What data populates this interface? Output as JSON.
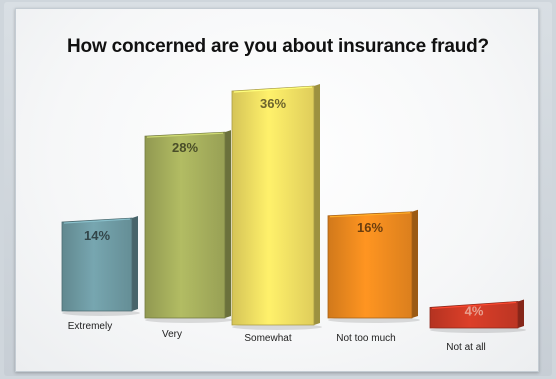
{
  "chart_data": {
    "type": "bar",
    "title": "How concerned are you about insurance fraud?",
    "categories": [
      "Extremely",
      "Very",
      "Somewhat",
      "Not too much",
      "Not at all"
    ],
    "values": [
      14,
      28,
      36,
      16,
      4
    ],
    "value_labels": [
      "14%",
      "28%",
      "36%",
      "16%",
      "4%"
    ],
    "ylim": [
      0,
      36
    ],
    "colors": [
      "#6e9aa3",
      "#a5ae5c",
      "#f2df63",
      "#ee8a1f",
      "#cc3a26"
    ],
    "grid": false,
    "legend": "none"
  }
}
